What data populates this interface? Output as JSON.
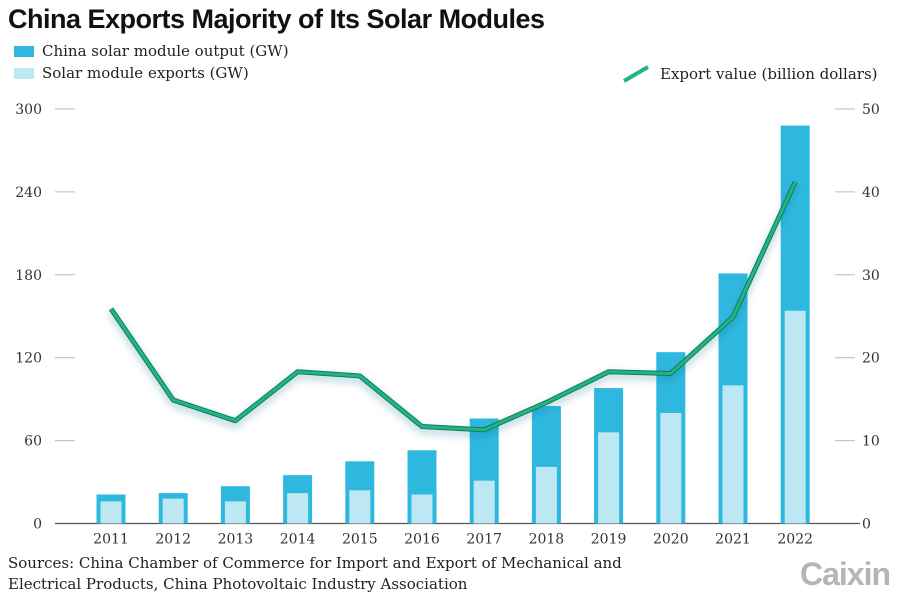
{
  "title": "China Exports Majority of Its Solar Modules",
  "legend": {
    "output": "China solar module output (GW)",
    "exports": "Solar module exports (GW)",
    "value": "Export value (billion dollars)"
  },
  "colors": {
    "output": "#2fb8df",
    "exports": "#bde7f3",
    "line": "#1fb585"
  },
  "source": [
    "Sources: China Chamber of Commerce for Import and Export of Mechanical and",
    "Electrical Products, China Photovoltaic Industry Association"
  ],
  "logo": "Caixin",
  "chart_data": {
    "type": "bar",
    "title": "China Exports Majority of Its Solar Modules",
    "categories": [
      "2011",
      "2012",
      "2013",
      "2014",
      "2015",
      "2016",
      "2017",
      "2018",
      "2019",
      "2020",
      "2021",
      "2022"
    ],
    "series": [
      {
        "name": "China solar module output (GW)",
        "type": "bar",
        "axis": "left",
        "values": [
          21,
          22,
          27,
          35,
          45,
          53,
          76,
          85,
          98,
          124,
          181,
          288
        ]
      },
      {
        "name": "Solar module exports (GW)",
        "type": "bar",
        "axis": "left",
        "values": [
          16,
          18,
          16,
          22,
          24,
          21,
          31,
          41,
          66,
          80,
          100,
          154
        ]
      },
      {
        "name": "Export value (billion dollars)",
        "type": "line",
        "axis": "right",
        "values": [
          25.9,
          14.9,
          12.4,
          18.3,
          17.8,
          11.7,
          11.3,
          14.6,
          18.3,
          18.1,
          24.9,
          41.2
        ]
      }
    ],
    "y_left": {
      "ticks": [
        0,
        60,
        120,
        180,
        240,
        300
      ],
      "range": [
        0,
        300
      ]
    },
    "y_right": {
      "ticks": [
        0,
        10,
        20,
        30,
        40,
        50
      ],
      "range": [
        0,
        50
      ]
    },
    "legend_position": "top"
  }
}
